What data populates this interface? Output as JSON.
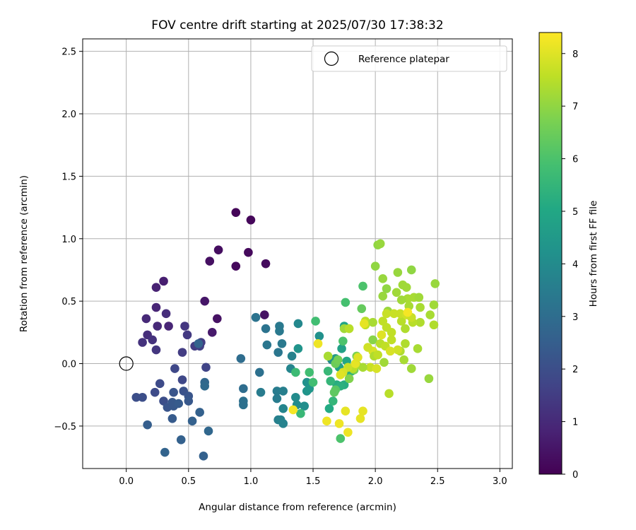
{
  "chart_data": {
    "type": "scatter",
    "title": "FOV centre drift starting at 2025/07/30 17:38:32",
    "xlabel": "Angular distance from reference (arcmin)",
    "ylabel": "Rotation from reference (arcmin)",
    "xlim": [
      -0.35,
      3.1
    ],
    "ylim": [
      -0.84,
      2.6
    ],
    "xticks": [
      0.0,
      0.5,
      1.0,
      1.5,
      2.0,
      2.5,
      3.0
    ],
    "xtick_labels": [
      "0.0",
      "0.5",
      "1.0",
      "1.5",
      "2.0",
      "2.5",
      "3.0"
    ],
    "yticks": [
      -0.5,
      0.0,
      0.5,
      1.0,
      1.5,
      2.0,
      2.5
    ],
    "ytick_labels": [
      "−0.5",
      "0.0",
      "0.5",
      "1.0",
      "1.5",
      "2.0",
      "2.5"
    ],
    "grid": true,
    "legend_position": "upper-right",
    "legend": [
      {
        "label": "Reference platepar",
        "marker": "open-circle",
        "x": 0.0,
        "y": 0.0
      }
    ],
    "colorbar": {
      "label": "Hours from first FF file",
      "range": [
        0,
        8.4
      ],
      "ticks": [
        0,
        1,
        2,
        3,
        4,
        5,
        6,
        7,
        8
      ],
      "tick_labels": [
        "0",
        "1",
        "2",
        "3",
        "4",
        "5",
        "6",
        "7",
        "8"
      ],
      "colormap": "viridis"
    },
    "points": [
      [
        0.88,
        1.21,
        0.1
      ],
      [
        1.0,
        1.15,
        0.15
      ],
      [
        0.98,
        0.89,
        0.2
      ],
      [
        0.74,
        0.91,
        0.3
      ],
      [
        0.67,
        0.82,
        0.35
      ],
      [
        0.88,
        0.78,
        0.2
      ],
      [
        1.12,
        0.8,
        0.25
      ],
      [
        1.11,
        0.39,
        0.4
      ],
      [
        0.73,
        0.36,
        0.4
      ],
      [
        0.63,
        0.5,
        0.5
      ],
      [
        0.69,
        0.25,
        0.6
      ],
      [
        0.3,
        0.66,
        0.7
      ],
      [
        0.24,
        0.61,
        0.8
      ],
      [
        0.24,
        0.45,
        0.9
      ],
      [
        0.16,
        0.36,
        1.0
      ],
      [
        0.34,
        0.3,
        0.9
      ],
      [
        0.25,
        0.3,
        1.0
      ],
      [
        0.17,
        0.23,
        1.1
      ],
      [
        0.13,
        0.17,
        1.2
      ],
      [
        0.21,
        0.19,
        1.2
      ],
      [
        0.24,
        0.11,
        1.3
      ],
      [
        0.32,
        0.4,
        1.1
      ],
      [
        0.47,
        0.3,
        1.3
      ],
      [
        0.49,
        0.23,
        1.4
      ],
      [
        0.45,
        0.09,
        1.5
      ],
      [
        0.55,
        0.14,
        1.5
      ],
      [
        0.59,
        0.14,
        1.6
      ],
      [
        0.6,
        0.17,
        1.5
      ],
      [
        0.64,
        -0.03,
        1.7
      ],
      [
        0.39,
        -0.04,
        1.8
      ],
      [
        0.45,
        -0.13,
        1.8
      ],
      [
        0.27,
        -0.16,
        1.9
      ],
      [
        0.23,
        -0.23,
        1.9
      ],
      [
        0.08,
        -0.27,
        2.0
      ],
      [
        0.13,
        -0.27,
        2.0
      ],
      [
        0.3,
        -0.3,
        2.0
      ],
      [
        0.38,
        -0.23,
        2.2
      ],
      [
        0.46,
        -0.22,
        2.1
      ],
      [
        0.5,
        -0.26,
        2.2
      ],
      [
        0.5,
        -0.3,
        2.3
      ],
      [
        0.37,
        -0.31,
        2.3
      ],
      [
        0.33,
        -0.35,
        2.2
      ],
      [
        0.38,
        -0.34,
        2.3
      ],
      [
        0.42,
        -0.32,
        2.4
      ],
      [
        0.37,
        -0.44,
        2.4
      ],
      [
        0.17,
        -0.49,
        2.5
      ],
      [
        0.53,
        -0.46,
        2.6
      ],
      [
        0.59,
        -0.39,
        2.6
      ],
      [
        0.44,
        -0.61,
        2.6
      ],
      [
        0.31,
        -0.71,
        2.7
      ],
      [
        0.62,
        -0.74,
        2.6
      ],
      [
        0.66,
        -0.54,
        2.8
      ],
      [
        0.63,
        -0.15,
        2.8
      ],
      [
        0.63,
        -0.18,
        2.9
      ],
      [
        0.58,
        0.16,
        2.7
      ],
      [
        0.92,
        0.04,
        3.0
      ],
      [
        0.94,
        -0.2,
        3.0
      ],
      [
        0.94,
        -0.3,
        3.1
      ],
      [
        0.94,
        -0.33,
        3.1
      ],
      [
        1.07,
        -0.07,
        3.1
      ],
      [
        1.04,
        0.37,
        3.2
      ],
      [
        1.12,
        0.28,
        3.2
      ],
      [
        1.13,
        0.15,
        3.3
      ],
      [
        1.22,
        0.09,
        3.3
      ],
      [
        1.23,
        0.3,
        3.4
      ],
      [
        1.23,
        0.26,
        3.4
      ],
      [
        1.25,
        0.16,
        3.4
      ],
      [
        1.08,
        -0.23,
        3.5
      ],
      [
        1.21,
        -0.28,
        3.5
      ],
      [
        1.21,
        -0.22,
        3.5
      ],
      [
        1.26,
        -0.22,
        3.6
      ],
      [
        1.22,
        -0.45,
        3.6
      ],
      [
        1.24,
        -0.45,
        3.7
      ],
      [
        1.26,
        -0.48,
        3.7
      ],
      [
        1.26,
        -0.36,
        3.8
      ],
      [
        1.33,
        0.06,
        3.7
      ],
      [
        1.32,
        -0.04,
        3.8
      ],
      [
        1.38,
        0.32,
        3.9
      ],
      [
        1.36,
        -0.27,
        4.0
      ],
      [
        1.37,
        -0.33,
        4.0
      ],
      [
        1.43,
        -0.34,
        4.1
      ],
      [
        1.45,
        -0.15,
        4.2
      ],
      [
        1.38,
        0.12,
        4.3
      ],
      [
        1.55,
        0.22,
        4.2
      ],
      [
        1.45,
        -0.22,
        4.3
      ],
      [
        1.47,
        -0.2,
        4.4
      ],
      [
        1.65,
        0.03,
        4.0
      ],
      [
        1.68,
        0.04,
        4.5
      ],
      [
        1.71,
        -0.03,
        4.8
      ],
      [
        1.73,
        0.12,
        4.8
      ],
      [
        1.75,
        0.3,
        4.9
      ],
      [
        1.77,
        0.02,
        5.0
      ],
      [
        1.79,
        -0.07,
        5.0
      ],
      [
        1.63,
        -0.36,
        5.1
      ],
      [
        1.69,
        -0.17,
        5.2
      ],
      [
        1.75,
        -0.17,
        5.2
      ],
      [
        1.72,
        -0.18,
        5.3
      ],
      [
        1.81,
        -0.06,
        5.3
      ],
      [
        1.64,
        -0.14,
        5.5
      ],
      [
        1.66,
        -0.3,
        5.5
      ],
      [
        1.62,
        -0.06,
        5.6
      ],
      [
        1.4,
        -0.4,
        5.6
      ],
      [
        1.36,
        -0.07,
        5.7
      ],
      [
        1.47,
        -0.07,
        5.8
      ],
      [
        1.5,
        -0.15,
        5.8
      ],
      [
        1.52,
        0.34,
        5.8
      ],
      [
        1.76,
        0.49,
        5.9
      ],
      [
        1.74,
        0.18,
        6.0
      ],
      [
        1.9,
        0.62,
        6.0
      ],
      [
        1.72,
        -0.6,
        6.0
      ],
      [
        1.68,
        -0.21,
        6.2
      ],
      [
        1.67,
        -0.23,
        6.3
      ],
      [
        1.89,
        0.44,
        6.4
      ],
      [
        1.68,
        0.0,
        6.5
      ],
      [
        1.7,
        0.03,
        6.6
      ],
      [
        1.83,
        -0.05,
        6.7
      ],
      [
        1.85,
        0.06,
        6.7
      ],
      [
        1.79,
        -0.12,
        6.8
      ],
      [
        1.98,
        0.19,
        6.9
      ],
      [
        2.0,
        0.78,
        7.0
      ],
      [
        2.02,
        0.95,
        7.0
      ],
      [
        2.04,
        0.96,
        7.1
      ],
      [
        2.06,
        0.68,
        7.1
      ],
      [
        2.09,
        0.6,
        7.0
      ],
      [
        2.06,
        0.54,
        7.1
      ],
      [
        2.1,
        0.42,
        7.1
      ],
      [
        2.17,
        0.57,
        7.2
      ],
      [
        2.22,
        0.63,
        7.2
      ],
      [
        2.18,
        0.73,
        7.1
      ],
      [
        2.29,
        0.75,
        7.0
      ],
      [
        2.25,
        0.61,
        7.2
      ],
      [
        2.26,
        0.52,
        7.3
      ],
      [
        2.27,
        0.46,
        7.3
      ],
      [
        2.21,
        0.51,
        7.2
      ],
      [
        2.31,
        0.53,
        7.3
      ],
      [
        2.35,
        0.53,
        7.2
      ],
      [
        2.36,
        0.45,
        7.3
      ],
      [
        2.47,
        0.47,
        7.2
      ],
      [
        2.48,
        0.64,
        7.1
      ],
      [
        2.44,
        0.39,
        7.3
      ],
      [
        2.47,
        0.31,
        7.4
      ],
      [
        2.36,
        0.33,
        7.4
      ],
      [
        2.3,
        0.33,
        7.5
      ],
      [
        2.24,
        0.28,
        7.4
      ],
      [
        2.21,
        0.34,
        7.5
      ],
      [
        2.13,
        0.25,
        7.6
      ],
      [
        2.09,
        0.29,
        7.6
      ],
      [
        2.06,
        0.34,
        7.6
      ],
      [
        2.09,
        0.4,
        7.7
      ],
      [
        2.15,
        0.4,
        7.7
      ],
      [
        2.2,
        0.4,
        7.7
      ],
      [
        2.25,
        0.39,
        7.8
      ],
      [
        2.29,
        0.37,
        7.7
      ],
      [
        2.34,
        0.12,
        7.3
      ],
      [
        2.24,
        0.16,
        7.4
      ],
      [
        2.2,
        0.1,
        7.4
      ],
      [
        2.23,
        0.03,
        7.3
      ],
      [
        2.29,
        -0.04,
        7.2
      ],
      [
        2.43,
        -0.12,
        7.1
      ],
      [
        2.07,
        0.01,
        7.2
      ],
      [
        2.04,
        0.16,
        7.5
      ],
      [
        2.08,
        0.14,
        7.6
      ],
      [
        2.13,
        0.19,
        7.6
      ],
      [
        2.18,
        0.11,
        7.8
      ],
      [
        2.12,
        0.1,
        7.9
      ],
      [
        2.05,
        0.23,
        8.0
      ],
      [
        1.98,
        0.1,
        7.9
      ],
      [
        1.94,
        0.13,
        7.8
      ],
      [
        1.92,
        0.31,
        7.6
      ],
      [
        1.92,
        0.34,
        7.5
      ],
      [
        1.98,
        0.33,
        7.3
      ],
      [
        1.99,
        0.06,
        7.4
      ],
      [
        2.02,
        0.07,
        7.6
      ],
      [
        1.96,
        -0.03,
        7.7
      ],
      [
        2.01,
        -0.04,
        7.9
      ],
      [
        2.11,
        -0.24,
        7.5
      ],
      [
        1.9,
        -0.03,
        7.3
      ],
      [
        1.85,
        -0.01,
        7.3
      ],
      [
        1.82,
        -0.04,
        7.5
      ],
      [
        1.78,
        -0.03,
        7.7
      ],
      [
        1.74,
        -0.07,
        7.9
      ],
      [
        1.72,
        -0.09,
        8.0
      ],
      [
        1.75,
        0.28,
        7.2
      ],
      [
        1.62,
        0.06,
        7.3
      ],
      [
        1.79,
        0.28,
        7.5
      ],
      [
        1.54,
        0.16,
        8.2
      ],
      [
        1.91,
        0.32,
        8.1
      ],
      [
        2.26,
        0.41,
        8.3
      ],
      [
        1.34,
        -0.37,
        8.3
      ],
      [
        1.61,
        -0.46,
        8.2
      ],
      [
        1.71,
        -0.48,
        8.2
      ],
      [
        1.76,
        -0.38,
        8.1
      ],
      [
        1.78,
        -0.55,
        8.2
      ],
      [
        1.9,
        -0.38,
        8.1
      ],
      [
        1.88,
        -0.44,
        8.1
      ],
      [
        1.84,
        0.0,
        8.1
      ],
      [
        1.86,
        0.05,
        8.0
      ]
    ]
  }
}
